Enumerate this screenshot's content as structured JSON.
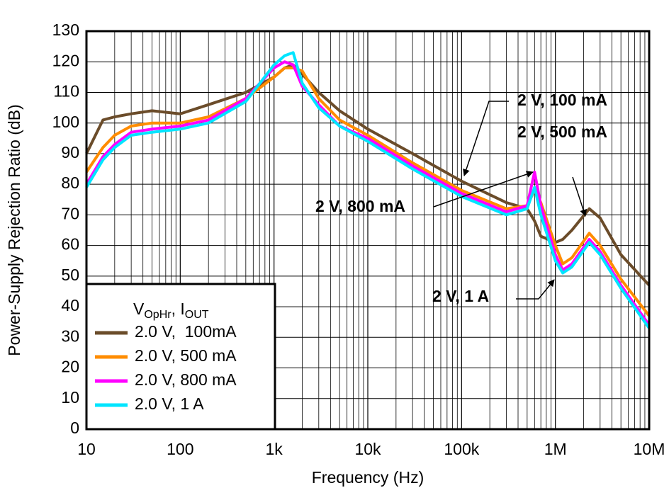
{
  "chart_data": {
    "type": "line",
    "xlabel": "Frequency (Hz)",
    "ylabel": "Power-Supply Rejection Ratio (dB)",
    "xscale": "log",
    "grid": true,
    "xlim": [
      10,
      10000000
    ],
    "ylim": [
      0,
      130
    ],
    "xticks": [
      10,
      100,
      {
        "value": 1000,
        "label": "1k"
      },
      {
        "value": 10000,
        "label": "10k"
      },
      {
        "value": 100000,
        "label": "100k"
      },
      {
        "value": 1000000,
        "label": "1M"
      },
      {
        "value": 10000000,
        "label": "10M"
      }
    ],
    "yticks": [
      0,
      10,
      20,
      30,
      40,
      50,
      60,
      70,
      80,
      90,
      100,
      110,
      120,
      130
    ],
    "legend_position": "lower left",
    "legend_title": [
      "V",
      "OpHr",
      ", I",
      "OUT"
    ],
    "x": [
      10,
      15,
      20,
      30,
      50,
      100,
      200,
      500,
      1000,
      1300,
      1600,
      2000,
      3000,
      5000,
      10000,
      30000,
      100000,
      300000,
      500000,
      600000,
      700000,
      1000000,
      1200000,
      1500000,
      2300000,
      3000000,
      5000000,
      10000000
    ],
    "series": [
      {
        "name": "2.0 V,  100mA",
        "color": "#6b4c2a",
        "values": [
          90,
          101,
          102,
          103,
          104,
          103,
          106,
          110,
          115,
          118,
          119,
          116,
          110,
          104,
          98,
          90,
          81,
          74,
          72,
          68,
          63,
          61,
          62,
          65,
          72,
          69,
          57,
          47
        ]
      },
      {
        "name": "2.0 V, 500 mA",
        "color": "#ff8c00",
        "values": [
          84,
          92,
          96,
          99,
          100,
          100,
          102,
          108,
          115,
          118,
          118,
          117,
          108,
          101,
          96,
          87,
          78,
          72,
          73,
          78,
          74,
          60,
          54,
          56,
          64,
          60,
          49,
          37
        ]
      },
      {
        "name": "2.0 V, 800 mA",
        "color": "#ff00ff",
        "values": [
          80,
          89,
          93,
          97,
          98,
          99,
          101,
          108,
          118,
          120,
          119,
          112,
          106,
          99,
          95,
          86,
          77,
          71,
          73,
          84,
          73,
          57,
          52,
          54,
          62,
          58,
          47,
          34
        ]
      },
      {
        "name": "2.0 V, 1 A",
        "color": "#00e5ff",
        "values": [
          79,
          88,
          92,
          96,
          97,
          98,
          100,
          107,
          119,
          122,
          123,
          113,
          105,
          99,
          94,
          85,
          76,
          70,
          72,
          79,
          70,
          55,
          51,
          53,
          61,
          57,
          46,
          33
        ]
      }
    ],
    "annotations": [
      "2 V, 100 mA",
      "2 V, 500 mA",
      "2 V, 800 mA",
      "2 V, 1 A"
    ]
  }
}
